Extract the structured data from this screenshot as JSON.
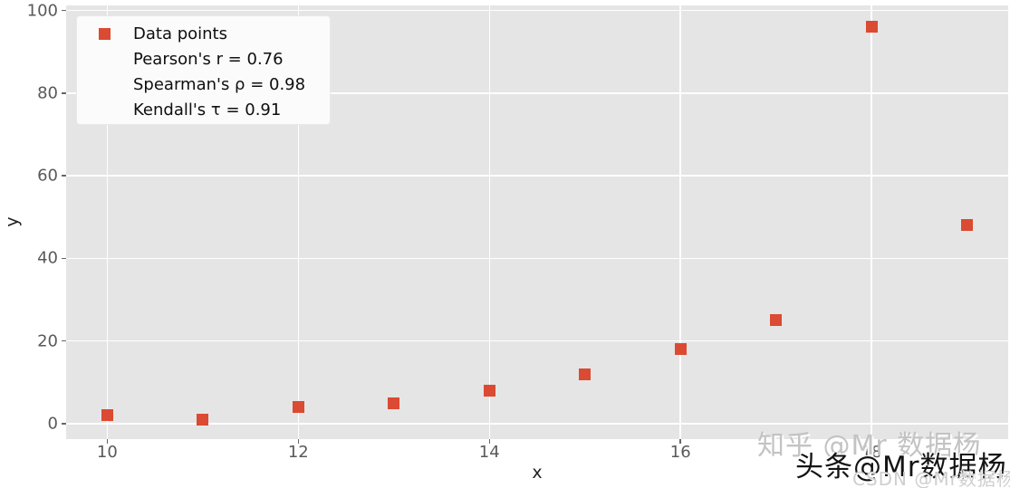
{
  "chart_data": {
    "type": "scatter",
    "title": "",
    "xlabel": "x",
    "ylabel": "y",
    "series": [
      {
        "name": "Data points",
        "x": [
          10,
          11,
          12,
          13,
          14,
          15,
          16,
          17,
          18,
          19
        ],
        "y": [
          2,
          1,
          4,
          5,
          8,
          12,
          18,
          25,
          96,
          48
        ],
        "marker": "square",
        "color": "#DB4A32"
      }
    ],
    "xlim": [
      9.57,
      19.43
    ],
    "ylim": [
      -3.75,
      101.25
    ],
    "xticks": [
      10,
      12,
      14,
      16,
      18
    ],
    "yticks": [
      0,
      20,
      40,
      60,
      80,
      100
    ],
    "grid": true,
    "grid_color": "#FFFFFF",
    "plot_background": "#E5E5E5",
    "legend_position": "upper left",
    "annotations": [
      "Pearson's r = 0.76",
      "Spearman's ρ = 0.98",
      "Kendall's τ = 0.91"
    ]
  },
  "legend": {
    "items": [
      {
        "has_marker": true,
        "label": "Data points"
      },
      {
        "has_marker": false,
        "label": "Pearson's r = 0.76"
      },
      {
        "has_marker": false,
        "label": "Spearman's ρ = 0.98"
      },
      {
        "has_marker": false,
        "label": "Kendall's τ = 0.91"
      }
    ]
  },
  "statistics": {
    "pearson_r": 0.76,
    "spearman_rho": 0.98,
    "kendall_tau": 0.91
  },
  "watermarks": {
    "zhihu": "知乎 @Mr 数据杨",
    "toutiao": "头条@Mr数据杨",
    "csdn": "CSDN @Mr数据杨"
  },
  "colors": {
    "marker": "#DB4A32",
    "tick_label": "#595959",
    "axis_label": "#222222",
    "plot_bg": "#E5E5E5",
    "grid": "#FFFFFF",
    "legend_bg": "#FBFBFB"
  }
}
